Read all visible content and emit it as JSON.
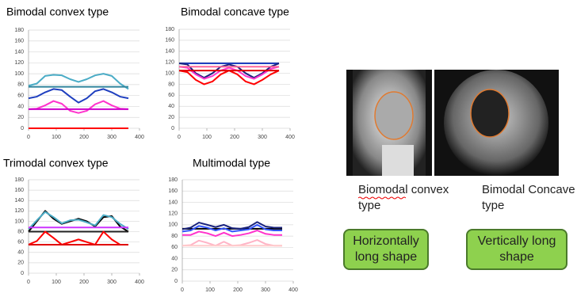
{
  "chart_data": [
    {
      "type": "line",
      "title": "Bimodal convex type",
      "x": [
        0,
        30,
        60,
        90,
        120,
        150,
        180,
        210,
        240,
        270,
        300,
        330,
        360
      ],
      "xlim": [
        0,
        400
      ],
      "xticks": [
        0,
        100,
        200,
        300,
        400
      ],
      "ylim": [
        0,
        180
      ],
      "yticks": [
        0,
        20,
        40,
        60,
        80,
        100,
        120,
        140,
        160,
        180
      ],
      "grid": true,
      "series": [
        {
          "color": "#4bacc6",
          "values": [
            78,
            82,
            96,
            98,
            97,
            90,
            85,
            90,
            97,
            100,
            96,
            82,
            72
          ]
        },
        {
          "color": "#31859c",
          "values": [
            76,
            76,
            76,
            76,
            76,
            76,
            76,
            76,
            76,
            76,
            76,
            76,
            76
          ]
        },
        {
          "color": "#1f3fbf",
          "values": [
            55,
            58,
            66,
            72,
            70,
            58,
            47,
            55,
            68,
            72,
            66,
            58,
            55
          ]
        },
        {
          "color": "#ff33cc",
          "values": [
            35,
            36,
            42,
            50,
            45,
            32,
            28,
            32,
            44,
            50,
            42,
            36,
            35
          ]
        },
        {
          "color": "#cc00cc",
          "values": [
            35,
            35,
            35,
            35,
            35,
            35,
            35,
            35,
            35,
            35,
            35,
            35,
            35
          ]
        },
        {
          "color": "#ff0000",
          "values": [
            0,
            0,
            0,
            0,
            0,
            0,
            0,
            0,
            0,
            0,
            0,
            0,
            0
          ]
        }
      ]
    },
    {
      "type": "line",
      "title": "Bimodal concave type",
      "x": [
        0,
        30,
        60,
        90,
        120,
        150,
        180,
        210,
        240,
        270,
        300,
        330,
        360
      ],
      "xlim": [
        0,
        400
      ],
      "xticks": [
        0,
        100,
        200,
        300,
        400
      ],
      "ylim": [
        0,
        180
      ],
      "yticks": [
        0,
        20,
        40,
        60,
        80,
        100,
        120,
        140,
        160,
        180
      ],
      "grid": true,
      "series": [
        {
          "color": "#1f3fbf",
          "values": [
            118,
            118,
            118,
            118,
            118,
            118,
            118,
            118,
            118,
            118,
            118,
            118,
            118
          ]
        },
        {
          "color": "#1a237e",
          "values": [
            118,
            116,
            100,
            92,
            100,
            112,
            116,
            112,
            100,
            92,
            100,
            112,
            118
          ]
        },
        {
          "color": "#ff33cc",
          "values": [
            112,
            110,
            98,
            90,
            95,
            105,
            110,
            105,
            95,
            90,
            98,
            108,
            112
          ]
        },
        {
          "color": "#ff6699",
          "values": [
            112,
            112,
            112,
            112,
            112,
            112,
            112,
            112,
            112,
            112,
            112,
            112,
            112
          ]
        },
        {
          "color": "#ff0000",
          "values": [
            105,
            102,
            88,
            80,
            85,
            98,
            105,
            98,
            85,
            80,
            88,
            98,
            105
          ]
        },
        {
          "color": "#e00000",
          "values": [
            105,
            105,
            105,
            105,
            105,
            105,
            105,
            105,
            105,
            105,
            105,
            105,
            105
          ]
        }
      ]
    },
    {
      "type": "line",
      "title": "Trimodal convex type",
      "x": [
        0,
        30,
        60,
        90,
        120,
        150,
        180,
        210,
        240,
        270,
        300,
        330,
        360
      ],
      "xlim": [
        0,
        400
      ],
      "xticks": [
        0,
        100,
        200,
        300,
        400
      ],
      "ylim": [
        0,
        180
      ],
      "yticks": [
        0,
        20,
        40,
        60,
        80,
        100,
        120,
        140,
        160,
        180
      ],
      "grid": true,
      "series": [
        {
          "color": "#000000",
          "values": [
            80,
            100,
            120,
            105,
            95,
            100,
            105,
            100,
            90,
            108,
            110,
            90,
            80
          ]
        },
        {
          "color": "#4bacc6",
          "values": [
            85,
            102,
            118,
            108,
            96,
            102,
            103,
            98,
            92,
            112,
            108,
            95,
            85
          ]
        },
        {
          "color": "#cc33ff",
          "values": [
            88,
            88,
            88,
            88,
            88,
            88,
            88,
            88,
            88,
            88,
            88,
            88,
            88
          ]
        },
        {
          "color": "#222222",
          "values": [
            80,
            80,
            80,
            80,
            80,
            80,
            80,
            80,
            80,
            80,
            80,
            80,
            80
          ]
        },
        {
          "color": "#ff0000",
          "values": [
            55,
            62,
            80,
            68,
            55,
            60,
            65,
            60,
            55,
            80,
            65,
            55,
            55
          ]
        },
        {
          "color": "#e00000",
          "values": [
            55,
            55,
            55,
            55,
            55,
            55,
            55,
            55,
            55,
            55,
            55,
            55,
            55
          ]
        }
      ]
    },
    {
      "type": "line",
      "title": "Multimodal type",
      "x": [
        0,
        30,
        60,
        90,
        120,
        150,
        180,
        210,
        240,
        270,
        300,
        330,
        360
      ],
      "xlim": [
        0,
        400
      ],
      "xticks": [
        0,
        100,
        200,
        300,
        400
      ],
      "ylim": [
        0,
        180
      ],
      "yticks": [
        0,
        20,
        40,
        60,
        80,
        100,
        120,
        140,
        160,
        180
      ],
      "grid": true,
      "series": [
        {
          "color": "#000000",
          "values": [
            93,
            93,
            93,
            93,
            93,
            93,
            93,
            93,
            93,
            93,
            93,
            93,
            93
          ]
        },
        {
          "color": "#1a237e",
          "values": [
            92,
            95,
            104,
            100,
            96,
            100,
            94,
            93,
            96,
            105,
            97,
            95,
            95
          ]
        },
        {
          "color": "#3355ff",
          "values": [
            88,
            90,
            98,
            95,
            90,
            94,
            88,
            90,
            92,
            100,
            92,
            90,
            90
          ]
        },
        {
          "color": "#ff33cc",
          "values": [
            82,
            82,
            88,
            85,
            80,
            86,
            80,
            82,
            85,
            90,
            84,
            82,
            82
          ]
        },
        {
          "color": "#ffb3c6",
          "values": [
            63,
            64,
            72,
            68,
            63,
            70,
            63,
            64,
            68,
            73,
            66,
            63,
            63
          ]
        },
        {
          "color": "#ffcccc",
          "values": [
            63,
            63,
            63,
            63,
            63,
            63,
            63,
            63,
            63,
            63,
            63,
            63,
            63
          ]
        }
      ]
    }
  ],
  "captions": [
    "Biomodal convex type",
    "Bimodal Concave type"
  ],
  "labels": [
    "Horizontally long shape",
    "Vertically long shape"
  ]
}
